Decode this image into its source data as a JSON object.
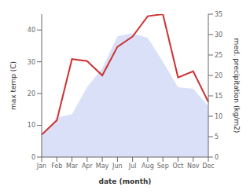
{
  "chart_data": {
    "type": "line",
    "xlabel": "date (month)",
    "ylabel": "max temp (C)",
    "y2label": "med. precipitation (kg/m2)",
    "categories": [
      "Jan",
      "Feb",
      "Mar",
      "Apr",
      "May",
      "Jun",
      "Jul",
      "Aug",
      "Sep",
      "Oct",
      "Nov",
      "Dec"
    ],
    "series": [
      {
        "type": "area",
        "color": "#aabbee",
        "values": [
          6.5,
          12.5,
          13.5,
          22.0,
          28.0,
          38.0,
          39.0,
          37.5,
          30.0,
          22.0,
          21.5,
          16.0
        ]
      },
      {
        "type": "line",
        "axis": "y2",
        "color": "#cc3333",
        "values": [
          5.5,
          9.0,
          24.0,
          23.5,
          20.0,
          27.0,
          29.5,
          34.5,
          35.0,
          19.5,
          21.0,
          13.5
        ]
      }
    ],
    "ylim": [
      0,
      45
    ],
    "yticks": [
      0,
      10,
      20,
      30,
      40
    ],
    "y2lim": [
      0,
      35
    ],
    "y2ticks": [
      0,
      5,
      10,
      15,
      20,
      25,
      30,
      35
    ],
    "grid": false
  }
}
